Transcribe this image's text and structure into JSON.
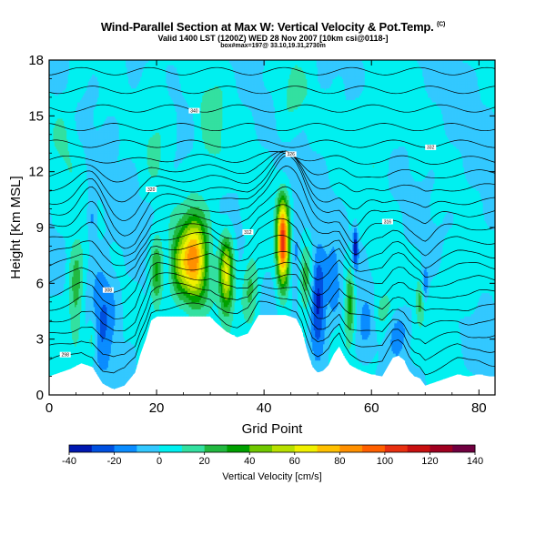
{
  "chart_data": {
    "type": "heatmap",
    "title": "Wind-Parallel Section at Max W: Vertical Velocity & Pot.Temp.",
    "title_mark": "(C)",
    "subtitle": "Valid 1400 LST (1200Z) WED 28 Nov 2007 [10km csi@0118-]",
    "subtitle2": "box#max=197@ 33.10,19.31,2730m",
    "xlabel": "Grid Point",
    "ylabel": "Height [Km MSL]",
    "xlim": [
      0,
      83
    ],
    "ylim": [
      0,
      18
    ],
    "x_ticks": [
      0,
      20,
      40,
      60,
      80
    ],
    "y_ticks": [
      0,
      3,
      6,
      9,
      12,
      15,
      18
    ],
    "colorbar": {
      "title": "Vertical Velocity [cm/s]",
      "ticks": [
        -40,
        -20,
        0,
        20,
        40,
        60,
        80,
        100,
        120,
        140
      ],
      "levels": [
        -40,
        -30,
        -20,
        -10,
        0,
        10,
        20,
        30,
        40,
        50,
        60,
        70,
        80,
        90,
        100,
        110,
        120,
        130,
        140
      ],
      "colors": [
        "#0018b0",
        "#0050e0",
        "#0a8cff",
        "#33c8ff",
        "#00f0f0",
        "#33e0a0",
        "#22b840",
        "#00a000",
        "#70c800",
        "#b8e000",
        "#f0f000",
        "#ffc000",
        "#ff9000",
        "#ff6000",
        "#e83010",
        "#c81010",
        "#a00020",
        "#700040"
      ]
    },
    "terrain": [
      [
        0,
        1.0
      ],
      [
        2,
        1.2
      ],
      [
        4,
        1.4
      ],
      [
        6,
        1.7
      ],
      [
        8,
        1.5
      ],
      [
        10,
        0.6
      ],
      [
        12,
        0.3
      ],
      [
        14,
        0.5
      ],
      [
        16,
        1.2
      ],
      [
        17,
        2.2
      ],
      [
        18,
        3.0
      ],
      [
        19,
        4.0
      ],
      [
        20,
        4.2
      ],
      [
        30,
        4.2
      ],
      [
        31,
        3.9
      ],
      [
        33,
        3.4
      ],
      [
        35,
        3.1
      ],
      [
        37,
        3.3
      ],
      [
        39,
        4.3
      ],
      [
        44,
        4.3
      ],
      [
        46,
        4.1
      ],
      [
        47,
        3.5
      ],
      [
        48,
        2.4
      ],
      [
        49,
        1.5
      ],
      [
        50,
        1.2
      ],
      [
        51,
        1.3
      ],
      [
        52,
        1.6
      ],
      [
        53,
        2.2
      ],
      [
        54,
        2.6
      ],
      [
        55,
        2.0
      ],
      [
        56,
        1.6
      ],
      [
        58,
        1.3
      ],
      [
        60,
        1.1
      ],
      [
        62,
        1.0
      ],
      [
        63,
        1.5
      ],
      [
        64,
        2.0
      ],
      [
        65,
        2.1
      ],
      [
        66,
        1.9
      ],
      [
        67,
        1.3
      ],
      [
        68,
        1.0
      ],
      [
        69,
        0.9
      ],
      [
        70,
        0.5
      ],
      [
        72,
        0.7
      ],
      [
        74,
        0.9
      ],
      [
        76,
        1.1
      ],
      [
        78,
        1.0
      ],
      [
        80,
        1.1
      ],
      [
        82,
        1.0
      ],
      [
        83,
        1.0
      ]
    ],
    "w_cells": [
      {
        "x": 27,
        "z": 7.3,
        "sx": 2.4,
        "sz": 2.4,
        "w": 80
      },
      {
        "x": 24,
        "z": 7.0,
        "sx": 1.8,
        "sz": 1.8,
        "w": 35
      },
      {
        "x": 43.5,
        "z": 8.2,
        "sx": 1.1,
        "sz": 2.2,
        "w": 105
      },
      {
        "x": 33,
        "z": 6.5,
        "sx": 1.3,
        "sz": 2.1,
        "w": 60
      },
      {
        "x": 20,
        "z": 6.5,
        "sx": 1.2,
        "sz": 2.0,
        "w": 35
      },
      {
        "x": 37.5,
        "z": 6.0,
        "sx": 1.6,
        "sz": 2.0,
        "w": 25
      },
      {
        "x": 5,
        "z": 5.5,
        "sx": 1.5,
        "sz": 2.5,
        "w": 30
      },
      {
        "x": 8,
        "z": 3.0,
        "sx": 1.0,
        "sz": 1.3,
        "w": 25
      },
      {
        "x": 56,
        "z": 5.0,
        "sx": 0.9,
        "sz": 2.0,
        "w": 35
      },
      {
        "x": 48,
        "z": 6.0,
        "sx": 1.3,
        "sz": 2.0,
        "w": 25
      },
      {
        "x": 62,
        "z": 4.5,
        "sx": 2.0,
        "sz": 1.2,
        "w": 20
      },
      {
        "x": 69,
        "z": 5.0,
        "sx": 0.8,
        "sz": 1.2,
        "w": 22
      },
      {
        "x": 75,
        "z": 6.0,
        "sx": 3.0,
        "sz": 2.0,
        "w": 12
      },
      {
        "x": 10,
        "z": 4.5,
        "sx": 2.6,
        "sz": 2.8,
        "w": -22
      },
      {
        "x": 50,
        "z": 5.0,
        "sx": 1.6,
        "sz": 2.4,
        "w": -40
      },
      {
        "x": 53,
        "z": 6.0,
        "sx": 1.0,
        "sz": 2.0,
        "w": -18
      },
      {
        "x": 59,
        "z": 4.0,
        "sx": 1.6,
        "sz": 1.4,
        "w": -14
      },
      {
        "x": 65,
        "z": 3.6,
        "sx": 2.0,
        "sz": 1.2,
        "w": -15
      },
      {
        "x": 57,
        "z": 8.0,
        "sx": 0.5,
        "sz": 1.1,
        "w": -35
      },
      {
        "x": 8,
        "z": 9.5,
        "sx": 0.8,
        "sz": 1.2,
        "w": -16
      },
      {
        "x": 70,
        "z": 6.0,
        "sx": 0.6,
        "sz": 1.0,
        "w": -20
      },
      {
        "x": 46,
        "z": 7.5,
        "sx": 0.9,
        "sz": 1.8,
        "w": -18
      },
      {
        "x": 30,
        "z": 14.0,
        "sx": 3.0,
        "sz": 3.5,
        "w": 14
      },
      {
        "x": 60,
        "z": 14.0,
        "sx": 4.0,
        "sz": 3.0,
        "w": 12
      },
      {
        "x": 20,
        "z": 15.0,
        "sx": 3.0,
        "sz": 3.0,
        "w": 12
      },
      {
        "x": 45,
        "z": 16.0,
        "sx": 3.0,
        "sz": 2.0,
        "w": 12
      },
      {
        "x": 3,
        "z": 14.0,
        "sx": 3.0,
        "sz": 3.0,
        "w": 10
      }
    ],
    "theta_contours": [
      {
        "k": 0.8,
        "label": "298"
      },
      {
        "k": 1.6,
        "label": ""
      },
      {
        "k": 2.4,
        "label": ""
      },
      {
        "k": 3.2,
        "label": ""
      },
      {
        "k": 4.0,
        "label": ""
      },
      {
        "k": 4.8,
        "label": ""
      },
      {
        "k": 5.6,
        "label": "308"
      },
      {
        "k": 6.4,
        "label": ""
      },
      {
        "k": 7.1,
        "label": "312"
      },
      {
        "k": 7.9,
        "label": ""
      },
      {
        "k": 8.7,
        "label": "316"
      },
      {
        "k": 9.5,
        "label": ""
      },
      {
        "k": 10.2,
        "label": "320"
      },
      {
        "k": 11.0,
        "label": ""
      },
      {
        "k": 11.8,
        "label": "326"
      },
      {
        "k": 12.6,
        "label": ""
      },
      {
        "k": 13.5,
        "label": "332"
      },
      {
        "k": 14.4,
        "label": ""
      },
      {
        "k": 15.4,
        "label": "340"
      },
      {
        "k": 16.4,
        "label": ""
      },
      {
        "k": 17.4,
        "label": ""
      }
    ]
  }
}
